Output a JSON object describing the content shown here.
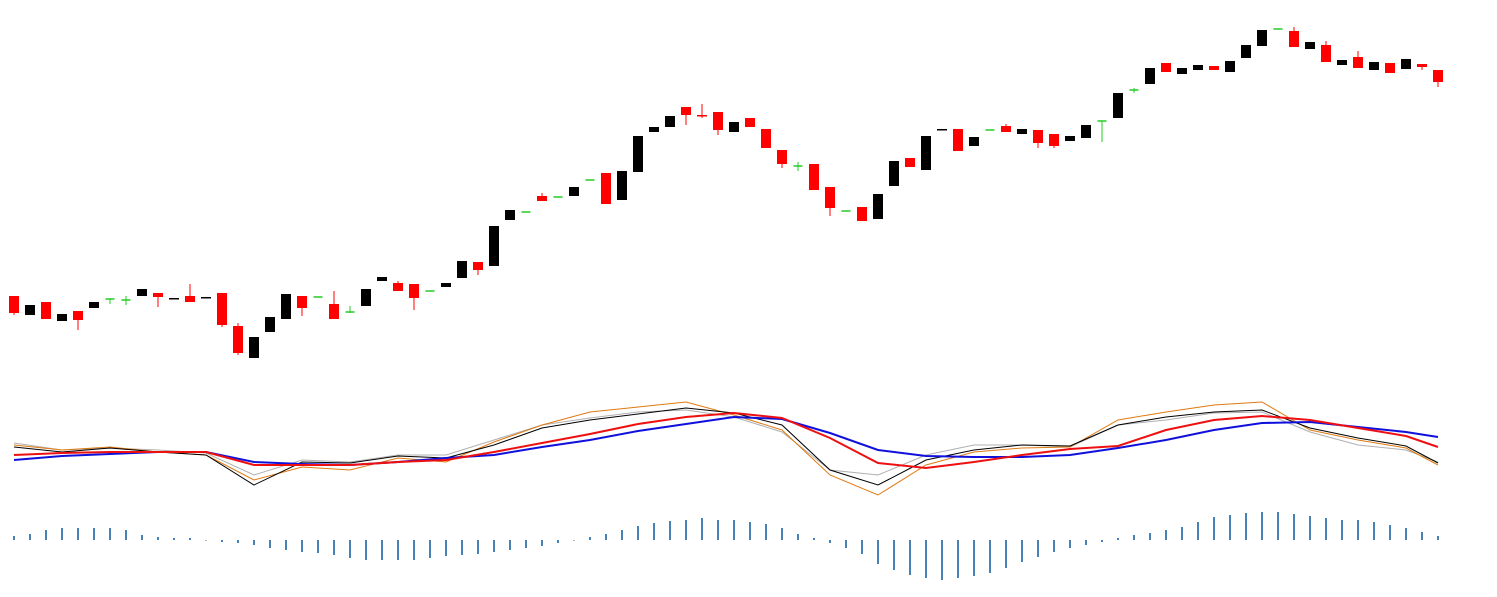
{
  "chart_data": [
    {
      "type": "candlestick",
      "open": [
        304,
        285,
        298,
        279,
        289,
        292,
        301,
        300,
        304,
        307,
        301,
        304,
        302,
        307,
        274,
        242,
        268,
        281,
        304,
        303,
        296,
        288,
        294,
        319,
        317,
        316,
        309,
        313,
        322,
        338,
        334,
        380,
        388,
        404,
        403,
        404,
        420,
        427,
        400,
        428,
        468,
        473,
        493,
        485,
        488,
        468,
        482,
        471,
        450,
        434,
        436,
        413,
        389,
        393,
        381,
        414,
        442,
        430,
        470,
        471,
        454,
        470,
        474,
        466,
        470,
        466,
        459,
        462,
        479,
        482,
        510,
        516,
        537,
        526,
        530,
        534,
        528,
        542,
        554,
        571,
        569,
        551,
        555,
        535,
        543,
        530,
        537,
        531,
        536,
        530
      ],
      "high": [
        304,
        295,
        298,
        286,
        289,
        298,
        301,
        304,
        311,
        307,
        302,
        316,
        303,
        307,
        277,
        263,
        283,
        306,
        304,
        303,
        309,
        294,
        311,
        323,
        319,
        316,
        309,
        317,
        339,
        338,
        374,
        390,
        388,
        407,
        403,
        413,
        420,
        427,
        429,
        464,
        473,
        484,
        493,
        496,
        488,
        478,
        482,
        471,
        450,
        438,
        436,
        413,
        389,
        393,
        406,
        439,
        442,
        464,
        471,
        471,
        463,
        470,
        476,
        471,
        470,
        466,
        464,
        475,
        479,
        507,
        512,
        532,
        537,
        532,
        535,
        534,
        539,
        555,
        570,
        571,
        573,
        558,
        559,
        540,
        549,
        538,
        537,
        541,
        536,
        530
      ],
      "low": [
        285,
        285,
        281,
        279,
        270,
        292,
        296,
        295,
        304,
        293,
        301,
        298,
        302,
        273,
        245,
        242,
        268,
        281,
        284,
        303,
        281,
        287,
        294,
        319,
        309,
        290,
        309,
        313,
        322,
        325,
        334,
        380,
        388,
        399,
        403,
        404,
        420,
        396,
        400,
        428,
        468,
        473,
        475,
        482,
        465,
        468,
        473,
        452,
        432,
        429,
        410,
        384,
        389,
        379,
        381,
        414,
        433,
        430,
        470,
        449,
        454,
        470,
        468,
        466,
        452,
        452,
        459,
        462,
        458,
        482,
        507,
        516,
        528,
        526,
        530,
        530,
        528,
        542,
        554,
        571,
        553,
        551,
        538,
        535,
        532,
        530,
        527,
        531,
        530,
        513
      ],
      "close": [
        287,
        295,
        281,
        286,
        280,
        298,
        301,
        300,
        311,
        303,
        302,
        298,
        303,
        275,
        247,
        263,
        283,
        306,
        292,
        303,
        281,
        288,
        311,
        323,
        309,
        302,
        309,
        317,
        339,
        330,
        374,
        390,
        388,
        399,
        403,
        413,
        420,
        396,
        429,
        464,
        473,
        484,
        485,
        484,
        470,
        478,
        473,
        452,
        436,
        434,
        410,
        392,
        389,
        379,
        406,
        439,
        433,
        464,
        471,
        449,
        463,
        470,
        468,
        471,
        457,
        454,
        464,
        475,
        479,
        507,
        510,
        532,
        528,
        532,
        535,
        530,
        539,
        555,
        570,
        571,
        553,
        558,
        538,
        540,
        532,
        538,
        527,
        541,
        533,
        518
      ],
      "up_color": "#000000",
      "down_color": "#ff0000",
      "doji_color": "#22cc22",
      "ylim": [
        200,
        600
      ]
    },
    {
      "type": "line",
      "x": [
        0,
        3,
        6,
        9,
        12,
        15,
        18,
        21,
        24,
        27,
        30,
        33,
        36,
        39,
        42,
        45,
        48,
        51,
        54,
        57,
        60,
        63,
        66,
        69,
        72,
        75,
        78,
        81,
        84,
        87,
        89
      ],
      "xlim": [
        0,
        89
      ],
      "series": [
        {
          "color": "#b0b0b0",
          "width": 1,
          "values": [
            97,
            90,
            92,
            90,
            87,
            65,
            80,
            78,
            85,
            85,
            100,
            115,
            122,
            128,
            130,
            123,
            108,
            70,
            65,
            85,
            95,
            95,
            93,
            115,
            120,
            127,
            128,
            108,
            95,
            90,
            78
          ]
        },
        {
          "color": "#e07a10",
          "width": 1,
          "values": [
            95,
            90,
            93,
            88,
            85,
            60,
            73,
            70,
            82,
            78,
            98,
            115,
            128,
            133,
            138,
            125,
            110,
            65,
            45,
            75,
            88,
            92,
            93,
            120,
            128,
            135,
            138,
            110,
            100,
            92,
            75
          ]
        },
        {
          "color": "#000000",
          "width": 1,
          "values": [
            93,
            88,
            92,
            88,
            85,
            55,
            78,
            77,
            84,
            82,
            95,
            112,
            120,
            126,
            132,
            127,
            115,
            70,
            55,
            80,
            90,
            95,
            94,
            115,
            123,
            128,
            130,
            112,
            102,
            94,
            77
          ]
        },
        {
          "color": "#1010dd",
          "width": 2,
          "values": [
            80,
            84,
            86,
            88,
            88,
            78,
            76,
            75,
            78,
            82,
            85,
            93,
            100,
            109,
            116,
            123,
            121,
            107,
            90,
            84,
            83,
            83,
            85,
            92,
            100,
            110,
            117,
            118,
            113,
            108,
            103
          ]
        },
        {
          "color": "#ee1010",
          "width": 2,
          "values": [
            85,
            87,
            88,
            88,
            88,
            75,
            75,
            75,
            78,
            80,
            88,
            97,
            106,
            116,
            123,
            127,
            122,
            102,
            77,
            72,
            78,
            85,
            91,
            94,
            110,
            120,
            124,
            120,
            112,
            104,
            93
          ]
        }
      ],
      "ylim": [
        -60,
        145
      ]
    },
    {
      "type": "bar",
      "color": "#4682b4",
      "values": [
        4,
        6,
        10,
        12,
        12,
        12,
        12,
        10,
        5,
        3,
        2,
        2,
        0,
        -2,
        -3,
        -5,
        -8,
        -10,
        -12,
        -13,
        -15,
        -18,
        -20,
        -20,
        -20,
        -20,
        -18,
        -16,
        -15,
        -14,
        -12,
        -10,
        -8,
        -6,
        -3,
        0,
        3,
        6,
        10,
        14,
        17,
        19,
        20,
        22,
        20,
        20,
        18,
        16,
        12,
        6,
        2,
        -3,
        -8,
        -14,
        -24,
        -30,
        -35,
        -38,
        -40,
        -38,
        -36,
        -33,
        -28,
        -22,
        -17,
        -12,
        -8,
        -5,
        -2,
        2,
        5,
        7,
        10,
        13,
        18,
        23,
        25,
        27,
        28,
        28,
        26,
        24,
        22,
        20,
        20,
        18,
        15,
        12,
        8,
        4
      ],
      "ylim": [
        -60,
        145
      ]
    }
  ]
}
